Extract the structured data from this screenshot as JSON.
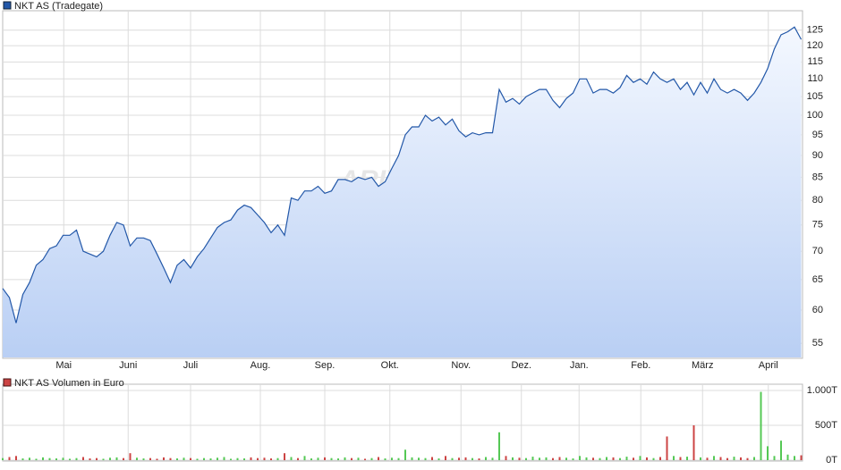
{
  "chart_data": [
    {
      "type": "line",
      "title": "NKT AS (Tradegate)",
      "watermark": "ARIVA.DE",
      "color": "#2257a8",
      "log_scale": true,
      "grid": true,
      "x": [
        0,
        1,
        2,
        3,
        4,
        5,
        6,
        7,
        8,
        9,
        10,
        11,
        12,
        13,
        14,
        15,
        16,
        17,
        18,
        19,
        20,
        21,
        22,
        23,
        24,
        25,
        26,
        27,
        28,
        29,
        30,
        31,
        32,
        33,
        34,
        35,
        36,
        37,
        38,
        39,
        40,
        41,
        42,
        43,
        44,
        45,
        46,
        47,
        48,
        49,
        50,
        51,
        52,
        53,
        54,
        55,
        56,
        57,
        58,
        59,
        60,
        61,
        62,
        63,
        64,
        65,
        66,
        67,
        68,
        69,
        70,
        71,
        72,
        73,
        74,
        75,
        76,
        77,
        78,
        79,
        80,
        81,
        82,
        83,
        84,
        85,
        86,
        87,
        88,
        89,
        90,
        91,
        92,
        93,
        94,
        95,
        96,
        97,
        98,
        99,
        100,
        101,
        102,
        103,
        104,
        105,
        106,
        107,
        108,
        109,
        110,
        111,
        112,
        113,
        114,
        115,
        116,
        117,
        118,
        119
      ],
      "values": [
        63.5,
        62,
        58,
        62.5,
        64.5,
        67.5,
        68.5,
        70.5,
        71,
        73,
        73,
        74,
        70,
        69.5,
        69,
        70,
        73,
        75.5,
        75,
        71,
        72.5,
        72.5,
        72,
        69.5,
        67,
        64.5,
        67.5,
        68.5,
        67,
        69,
        70.5,
        72.5,
        74.5,
        75.5,
        76,
        78,
        79,
        78.5,
        77,
        75.5,
        73.5,
        75,
        73,
        80.5,
        80,
        82,
        82,
        83,
        81.5,
        82,
        84.5,
        84.5,
        84,
        85,
        84.5,
        85,
        83,
        84,
        87,
        90,
        95,
        97,
        97,
        100,
        98.5,
        99.5,
        97.5,
        99,
        96,
        94.5,
        95.5,
        95,
        95.5,
        95.5,
        107,
        103.5,
        104.5,
        103,
        105,
        106,
        107,
        107,
        104,
        102,
        104.5,
        106,
        110,
        110,
        106,
        107,
        107,
        106,
        107.5,
        111,
        109,
        110,
        108.5,
        112,
        110,
        109,
        110,
        107,
        109,
        105.5,
        109,
        106,
        110,
        107,
        106,
        107,
        106,
        104,
        106,
        109,
        113,
        119,
        123.5,
        124.5,
        126,
        122
      ],
      "xlim": [
        0,
        119
      ],
      "ylim": [
        53,
        130
      ],
      "xticks": [
        {
          "value": 9.1,
          "label": "Mai"
        },
        {
          "value": 18.7,
          "label": "Juni"
        },
        {
          "value": 28,
          "label": "Juli"
        },
        {
          "value": 38.4,
          "label": "Aug."
        },
        {
          "value": 48,
          "label": "Sep."
        },
        {
          "value": 57.7,
          "label": "Okt."
        },
        {
          "value": 68.3,
          "label": "Nov."
        },
        {
          "value": 77.3,
          "label": "Dez."
        },
        {
          "value": 85.9,
          "label": "Jan."
        },
        {
          "value": 95.1,
          "label": "Feb."
        },
        {
          "value": 104.3,
          "label": "März"
        },
        {
          "value": 114.1,
          "label": "April"
        }
      ],
      "yticks": [
        55,
        60,
        65,
        70,
        75,
        80,
        85,
        90,
        95,
        100,
        105,
        110,
        115,
        120,
        125
      ]
    },
    {
      "type": "bar",
      "title": "NKT AS Volumen in Euro",
      "color": "#cc4444",
      "color_up": "#55c855",
      "color_down": "#cc4444",
      "grid": true,
      "x": [
        0,
        1,
        2,
        3,
        4,
        5,
        6,
        7,
        8,
        9,
        10,
        11,
        12,
        13,
        14,
        15,
        16,
        17,
        18,
        19,
        20,
        21,
        22,
        23,
        24,
        25,
        26,
        27,
        28,
        29,
        30,
        31,
        32,
        33,
        34,
        35,
        36,
        37,
        38,
        39,
        40,
        41,
        42,
        43,
        44,
        45,
        46,
        47,
        48,
        49,
        50,
        51,
        52,
        53,
        54,
        55,
        56,
        57,
        58,
        59,
        60,
        61,
        62,
        63,
        64,
        65,
        66,
        67,
        68,
        69,
        70,
        71,
        72,
        73,
        74,
        75,
        76,
        77,
        78,
        79,
        80,
        81,
        82,
        83,
        84,
        85,
        86,
        87,
        88,
        89,
        90,
        91,
        92,
        93,
        94,
        95,
        96,
        97,
        98,
        99,
        100,
        101,
        102,
        103,
        104,
        105,
        106,
        107,
        108,
        109,
        110,
        111,
        112,
        113,
        114,
        115,
        116,
        117,
        118,
        119
      ],
      "values": [
        30,
        45,
        60,
        25,
        35,
        20,
        40,
        30,
        25,
        35,
        20,
        30,
        45,
        25,
        30,
        20,
        35,
        40,
        30,
        100,
        35,
        25,
        30,
        20,
        40,
        30,
        25,
        35,
        30,
        20,
        30,
        25,
        35,
        45,
        20,
        30,
        25,
        40,
        30,
        35,
        25,
        30,
        100,
        45,
        30,
        60,
        25,
        35,
        40,
        30,
        25,
        40,
        30,
        35,
        20,
        30,
        45,
        25,
        35,
        30,
        150,
        40,
        35,
        30,
        45,
        25,
        60,
        30,
        35,
        40,
        30,
        25,
        45,
        35,
        400,
        60,
        40,
        35,
        30,
        50,
        35,
        40,
        30,
        45,
        35,
        25,
        60,
        40,
        35,
        30,
        45,
        40,
        30,
        50,
        35,
        60,
        40,
        30,
        45,
        340,
        60,
        45,
        50,
        500,
        40,
        35,
        60,
        45,
        30,
        50,
        40,
        30,
        45,
        980,
        200,
        60,
        280,
        80,
        60,
        70
      ],
      "xlim": [
        0,
        119
      ],
      "ylim": [
        0,
        1000
      ],
      "xticks": [
        9.1,
        18.7,
        28,
        38.4,
        48,
        57.7,
        68.3,
        77.3,
        85.9,
        95.1,
        104.3,
        114.1
      ],
      "yticks": [
        {
          "value": 1000,
          "label": "1.000T"
        },
        {
          "value": 500,
          "label": "500T"
        },
        {
          "value": 0,
          "label": "0T"
        }
      ]
    }
  ]
}
